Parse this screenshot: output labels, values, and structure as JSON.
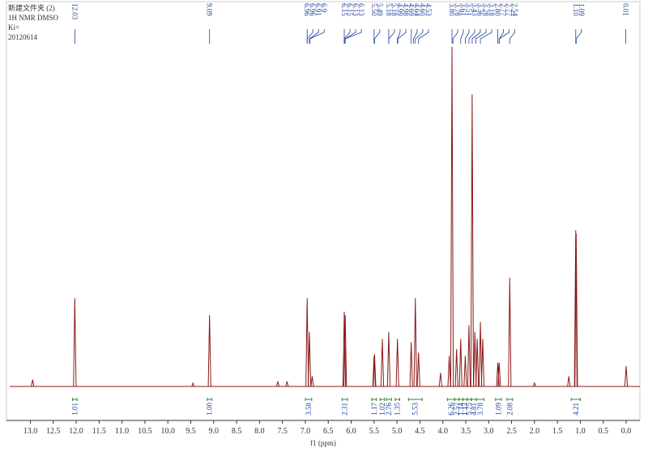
{
  "chart_data": {
    "type": "spectrum",
    "header": [
      "新建文件夹 (2)",
      "1H NMR  DMSO",
      "Ki=",
      "20120614"
    ],
    "x_label": "f1 (ppm)",
    "color": "#8b1a1a",
    "integral_color": "#2e8b2e",
    "label_color": "#1f3f9f",
    "xlim": [
      13.45,
      -0.3
    ],
    "ylim": [
      0,
      100
    ],
    "xticks": [
      {
        "value": 13,
        "label": "13.0"
      },
      12.5,
      {
        "value": 12,
        "label": "12.0"
      },
      11.5,
      {
        "value": 11,
        "label": "11.0"
      },
      10.5,
      {
        "value": 10,
        "label": "10.0"
      },
      9.5,
      {
        "value": 9,
        "label": "9.0"
      },
      8.5,
      {
        "value": 8,
        "label": "8.0"
      },
      7.5,
      {
        "value": 7,
        "label": "7.0"
      },
      6.5,
      {
        "value": 6,
        "label": "6.0"
      },
      5.5,
      {
        "value": 5,
        "label": "5.0"
      },
      4.5,
      {
        "value": 4,
        "label": "4.0"
      },
      3.5,
      {
        "value": 3,
        "label": "3.0"
      },
      2.5,
      {
        "value": 2,
        "label": "2.0"
      },
      1.5,
      {
        "value": 1,
        "label": "1.0"
      },
      0.5,
      {
        "value": 0,
        "label": "0.0"
      }
    ],
    "x": [
      12.95,
      12.03,
      9.45,
      9.09,
      7.6,
      7.4,
      6.96,
      6.91,
      6.85,
      6.15,
      6.13,
      5.5,
      5.49,
      5.32,
      5.18,
      4.99,
      4.69,
      4.6,
      4.53,
      4.05,
      3.86,
      3.8,
      3.7,
      3.61,
      3.51,
      3.43,
      3.36,
      3.3,
      3.25,
      3.18,
      3.13,
      2.8,
      2.77,
      2.54,
      2.0,
      1.25,
      1.1,
      1.09,
      0.0
    ],
    "values": [
      2,
      26,
      1,
      21,
      1.5,
      1.5,
      26,
      16,
      3,
      22,
      21,
      9,
      9.5,
      14,
      16,
      14,
      13,
      26,
      10,
      4,
      9,
      100,
      11,
      14,
      9,
      18,
      86,
      16,
      14,
      19,
      14,
      7,
      7,
      32,
      1,
      3,
      46,
      45,
      6
    ],
    "peak_labels": [
      12.03,
      9.09,
      6.96,
      6.96,
      6.91,
      6.9,
      6.15,
      6.15,
      6.13,
      6.13,
      {
        "value": 5.5,
        "label": "5.50"
      },
      5.49,
      5.18,
      5.18,
      4.99,
      4.98,
      4.69,
      4.64,
      {
        "value": 4.6,
        "label": "4.60"
      },
      4.53,
      {
        "value": 3.8,
        "label": "3.80"
      },
      3.78,
      3.61,
      3.51,
      3.43,
      3.36,
      3.28,
      3.18,
      {
        "value": 2.8,
        "label": "2.80"
      },
      2.77,
      2.77,
      2.54,
      {
        "value": 1.1,
        "label": "1.10"
      },
      1.09,
      0.01
    ],
    "integrals": [
      {
        "range": [
          12.08,
          11.98
        ],
        "value": 1.01
      },
      {
        "range": [
          9.14,
          9.04
        ],
        "value": {
          "value": 1,
          "label": "1.00"
        }
      },
      {
        "range": [
          7.0,
          6.86
        ],
        "value": 3.58
      },
      {
        "range": [
          6.2,
          6.08
        ],
        "value": 2.31
      },
      {
        "range": [
          5.55,
          5.45
        ],
        "value": 1.17
      },
      {
        "range": [
          5.37,
          5.27
        ],
        "value": 1.02
      },
      {
        "range": [
          5.23,
          5.12
        ],
        "value": 2.76
      },
      {
        "range": [
          5.04,
          4.94
        ],
        "value": 1.35
      },
      {
        "range": [
          4.75,
          4.45
        ],
        "value": 5.53
      },
      {
        "range": [
          3.9,
          3.74
        ],
        "value": 6.26
      },
      {
        "range": [
          3.74,
          3.65
        ],
        "value": 2.57
      },
      {
        "range": [
          3.65,
          3.56
        ],
        "value": 1.14
      },
      {
        "range": [
          3.56,
          3.47
        ],
        "value": 1.13
      },
      {
        "range": [
          3.47,
          3.38
        ],
        "value": 5.75
      },
      {
        "range": [
          3.38,
          3.27
        ],
        "value": 4.81
      },
      {
        "range": [
          3.27,
          3.1
        ],
        "value": 3.78
      },
      {
        "range": [
          2.85,
          2.72
        ],
        "value": 1.09
      },
      {
        "range": [
          2.6,
          2.48
        ],
        "value": 2.08
      },
      {
        "range": [
          1.2,
          1.0
        ],
        "value": 4.21
      }
    ]
  }
}
